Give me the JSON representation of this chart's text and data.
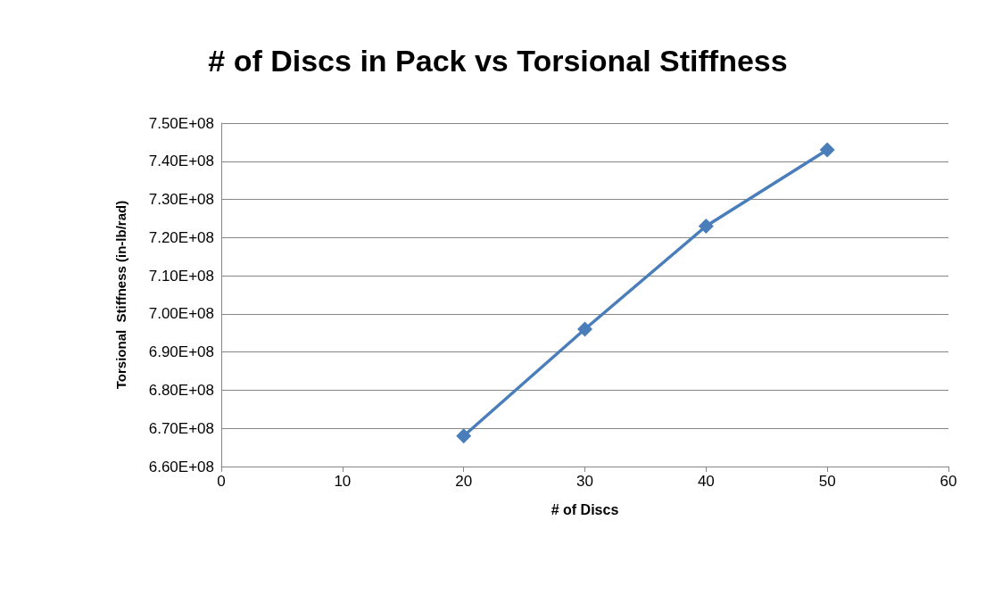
{
  "chart_data": {
    "type": "line",
    "title": "# of Discs in Pack vs Torsional Stiffness",
    "xlabel": "# of Discs",
    "ylabel": "Torsional  Stiffness (in-lb/rad)",
    "x": [
      20,
      30,
      40,
      50
    ],
    "series": [
      {
        "color": "#4a7ebb",
        "values": [
          668000000,
          696000000,
          723000000,
          743000000
        ]
      }
    ],
    "xlim": [
      0,
      60
    ],
    "xticks": [
      0,
      10,
      20,
      30,
      40,
      50,
      60
    ],
    "ylim": [
      660000000,
      750000000
    ],
    "yticks": [
      {
        "value": 660000000,
        "label": "6.60E+08"
      },
      {
        "value": 670000000,
        "label": "6.70E+08"
      },
      {
        "value": 680000000,
        "label": "6.80E+08"
      },
      {
        "value": 690000000,
        "label": "6.90E+08"
      },
      {
        "value": 700000000,
        "label": "7.00E+08"
      },
      {
        "value": 710000000,
        "label": "7.10E+08"
      },
      {
        "value": 720000000,
        "label": "7.20E+08"
      },
      {
        "value": 730000000,
        "label": "7.30E+08"
      },
      {
        "value": 740000000,
        "label": "7.40E+08"
      },
      {
        "value": 750000000,
        "label": "7.50E+08"
      }
    ],
    "grid": "y",
    "marker": "diamond",
    "line_style": "solid"
  }
}
